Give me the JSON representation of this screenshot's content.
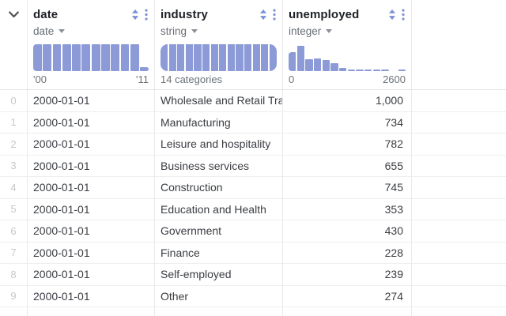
{
  "table": {
    "colors": {
      "hist_bar": "#8C9BD7",
      "icon_blue": "#7C90D3",
      "caret_gray": "#8d9197",
      "chevron_dark": "#4a4d52"
    },
    "columns": [
      {
        "name": "date",
        "type_label": "date",
        "range_left": "'00",
        "range_right": "'11",
        "histogram": {
          "kind": "bars",
          "values": [
            1,
            1,
            1,
            1,
            1,
            1,
            1,
            1,
            1,
            1,
            1,
            0.15
          ]
        }
      },
      {
        "name": "industry",
        "type_label": "string",
        "summary": "14 categories",
        "histogram": {
          "kind": "segments",
          "segments": 14
        }
      },
      {
        "name": "unemployed",
        "type_label": "integer",
        "range_left": "0",
        "range_right": "2600",
        "histogram": {
          "kind": "bars",
          "values": [
            0.72,
            0.95,
            0.44,
            0.47,
            0.4,
            0.29,
            0.13,
            0.07,
            0.06,
            0.07,
            0.07,
            0.05,
            0,
            0.05
          ]
        }
      }
    ],
    "rows": [
      {
        "index": "0",
        "date": "2000-01-01",
        "industry": "Wholesale and Retail Trade",
        "unemployed": "1,000"
      },
      {
        "index": "1",
        "date": "2000-01-01",
        "industry": "Manufacturing",
        "unemployed": "734"
      },
      {
        "index": "2",
        "date": "2000-01-01",
        "industry": "Leisure and hospitality",
        "unemployed": "782"
      },
      {
        "index": "3",
        "date": "2000-01-01",
        "industry": "Business services",
        "unemployed": "655"
      },
      {
        "index": "4",
        "date": "2000-01-01",
        "industry": "Construction",
        "unemployed": "745"
      },
      {
        "index": "5",
        "date": "2000-01-01",
        "industry": "Education and Health",
        "unemployed": "353"
      },
      {
        "index": "6",
        "date": "2000-01-01",
        "industry": "Government",
        "unemployed": "430"
      },
      {
        "index": "7",
        "date": "2000-01-01",
        "industry": "Finance",
        "unemployed": "228"
      },
      {
        "index": "8",
        "date": "2000-01-01",
        "industry": "Self-employed",
        "unemployed": "239"
      },
      {
        "index": "9",
        "date": "2000-01-01",
        "industry": "Other",
        "unemployed": "274"
      }
    ]
  }
}
